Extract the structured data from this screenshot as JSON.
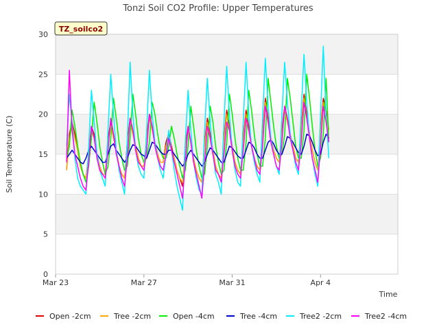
{
  "chart_data": {
    "type": "line",
    "title": "Tonzi Soil CO2 Profile: Upper Temperatures",
    "xlabel": "Time",
    "ylabel": "Soil Temperature (C)",
    "badge": "TZ_soilco2",
    "ylim": [
      0,
      30
    ],
    "yticks": [
      0,
      5,
      10,
      15,
      20,
      25,
      30
    ],
    "xlim": [
      "2000-03-23",
      "2000-04-07T12:00"
    ],
    "xticks": [
      {
        "date": "2000-03-23",
        "label": "Mar 23"
      },
      {
        "date": "2000-03-27",
        "label": "Mar 27"
      },
      {
        "date": "2000-03-31",
        "label": "Mar 31"
      },
      {
        "date": "2000-04-04",
        "label": "Apr 4"
      }
    ],
    "grid": true,
    "legend_position": "bottom",
    "series": [
      {
        "name": "Open -2cm",
        "color": "#dd0000",
        "start": "2000-03-23T12:00",
        "step_hours": 3,
        "values": [
          13.0,
          17.5,
          19.0,
          17.5,
          15.5,
          13.5,
          12.5,
          12.0,
          15.0,
          18.5,
          17.5,
          15.0,
          13.5,
          12.5,
          12.5,
          17.0,
          19.0,
          17.5,
          15.5,
          13.5,
          12.5,
          12.0,
          16.5,
          19.5,
          18.0,
          16.0,
          14.5,
          13.5,
          13.5,
          17.0,
          20.0,
          18.5,
          16.5,
          15.0,
          14.0,
          14.0,
          16.5,
          17.5,
          16.0,
          14.5,
          13.0,
          12.0,
          11.0,
          16.0,
          18.5,
          16.5,
          14.5,
          13.0,
          12.0,
          11.5,
          16.5,
          19.5,
          17.5,
          15.5,
          13.5,
          12.5,
          12.0,
          17.0,
          20.5,
          18.5,
          16.0,
          14.0,
          13.0,
          12.5,
          17.0,
          20.5,
          18.5,
          16.0,
          14.5,
          13.5,
          13.0,
          17.5,
          22.0,
          19.5,
          17.0,
          15.5,
          14.5,
          14.0,
          18.0,
          21.0,
          19.5,
          17.5,
          16.0,
          14.5,
          14.0,
          18.5,
          22.5,
          20.0,
          17.5,
          15.5,
          14.0,
          13.0,
          18.0,
          22.0,
          20.5,
          18.0
        ]
      },
      {
        "name": "Tree -2cm",
        "color": "#ffaa00",
        "start": "2000-03-23T12:00",
        "step_hours": 3,
        "values": [
          13.0,
          17.0,
          18.5,
          17.0,
          15.5,
          13.5,
          12.5,
          12.0,
          15.0,
          18.0,
          17.0,
          15.0,
          13.5,
          12.5,
          12.5,
          16.5,
          18.5,
          17.0,
          15.5,
          13.5,
          12.5,
          12.0,
          16.0,
          19.0,
          17.5,
          16.0,
          14.5,
          13.5,
          13.5,
          16.5,
          19.5,
          18.0,
          16.5,
          15.0,
          14.0,
          14.0,
          16.0,
          17.0,
          15.5,
          14.5,
          13.0,
          12.0,
          11.5,
          15.5,
          18.0,
          16.5,
          14.5,
          13.0,
          12.0,
          11.5,
          16.0,
          19.0,
          17.0,
          15.5,
          13.5,
          12.5,
          12.0,
          16.5,
          20.0,
          18.0,
          16.0,
          14.0,
          13.0,
          12.5,
          16.5,
          20.0,
          18.0,
          16.0,
          14.5,
          13.5,
          13.0,
          17.0,
          21.5,
          19.0,
          17.0,
          15.5,
          14.5,
          14.0,
          17.5,
          20.5,
          19.0,
          17.5,
          16.0,
          14.5,
          14.0,
          18.0,
          22.0,
          19.5,
          17.5,
          15.5,
          14.0,
          13.0,
          17.5,
          21.5,
          20.0,
          18.0
        ]
      },
      {
        "name": "Open -4cm",
        "color": "#00ee00",
        "start": "2000-03-23T12:00",
        "step_hours": 3,
        "values": [
          14.5,
          16.0,
          20.5,
          18.5,
          16.0,
          14.0,
          12.5,
          11.5,
          13.5,
          17.0,
          21.5,
          19.0,
          16.0,
          14.0,
          12.5,
          13.5,
          17.0,
          22.0,
          19.5,
          16.5,
          14.5,
          13.0,
          13.5,
          17.0,
          22.5,
          20.0,
          17.0,
          15.0,
          14.0,
          14.5,
          16.5,
          21.5,
          20.0,
          17.5,
          15.5,
          14.5,
          14.5,
          16.0,
          18.5,
          17.0,
          15.0,
          13.5,
          12.0,
          13.0,
          16.0,
          21.0,
          18.5,
          15.5,
          13.5,
          12.0,
          12.5,
          16.0,
          21.0,
          19.0,
          16.0,
          14.0,
          12.5,
          13.0,
          16.5,
          22.5,
          20.0,
          17.0,
          14.5,
          13.0,
          13.0,
          16.5,
          23.0,
          20.5,
          17.5,
          15.0,
          13.5,
          13.5,
          17.0,
          24.5,
          21.5,
          18.5,
          16.0,
          14.5,
          15.0,
          17.5,
          24.5,
          22.0,
          19.0,
          16.0,
          14.5,
          14.5,
          18.0,
          25.0,
          22.0,
          18.5,
          15.5,
          13.5,
          14.5,
          17.5,
          24.5,
          16.5
        ]
      },
      {
        "name": "Tree -4cm",
        "color": "#0000cc",
        "start": "2000-03-23T12:00",
        "step_hours": 3,
        "values": [
          14.5,
          15.0,
          15.5,
          15.0,
          14.5,
          14.0,
          13.8,
          14.5,
          15.5,
          16.0,
          15.5,
          15.0,
          14.5,
          14.0,
          14.0,
          15.0,
          16.0,
          16.3,
          15.5,
          15.0,
          14.5,
          14.0,
          14.5,
          15.5,
          16.2,
          16.0,
          15.5,
          15.0,
          14.8,
          14.5,
          15.5,
          16.5,
          16.3,
          15.8,
          15.3,
          15.0,
          15.0,
          15.5,
          15.5,
          15.0,
          14.5,
          14.0,
          13.5,
          14.0,
          15.0,
          15.5,
          15.0,
          14.5,
          14.0,
          13.5,
          14.0,
          15.0,
          15.8,
          15.5,
          15.0,
          14.5,
          14.0,
          14.0,
          15.0,
          16.0,
          15.8,
          15.3,
          14.8,
          14.5,
          14.5,
          15.5,
          16.5,
          16.3,
          15.8,
          15.0,
          14.5,
          14.5,
          15.5,
          16.5,
          16.8,
          16.3,
          15.5,
          15.0,
          15.0,
          16.0,
          17.2,
          17.0,
          16.5,
          15.8,
          15.2,
          15.0,
          16.0,
          17.5,
          17.3,
          16.5,
          15.5,
          14.8,
          15.0,
          16.5,
          17.5,
          17.0
        ]
      },
      {
        "name": "Tree2 -2cm",
        "color": "#00eeff",
        "start": "2000-03-23T12:00",
        "step_hours": 3,
        "values": [
          16.0,
          22.5,
          19.0,
          14.5,
          12.0,
          11.0,
          10.5,
          10.0,
          16.0,
          23.0,
          19.0,
          15.0,
          13.0,
          12.0,
          11.0,
          18.0,
          25.0,
          20.0,
          15.5,
          13.0,
          11.5,
          10.0,
          17.0,
          26.5,
          20.0,
          15.5,
          13.5,
          12.5,
          12.0,
          18.0,
          25.5,
          20.0,
          16.5,
          14.5,
          13.0,
          12.0,
          15.0,
          18.0,
          15.5,
          13.0,
          11.0,
          9.5,
          8.0,
          16.5,
          23.0,
          18.0,
          14.0,
          12.0,
          10.5,
          10.0,
          18.0,
          24.5,
          19.0,
          15.0,
          12.5,
          11.5,
          10.0,
          19.0,
          26.0,
          20.0,
          15.5,
          13.0,
          11.5,
          11.0,
          19.0,
          26.5,
          20.0,
          16.0,
          14.0,
          12.5,
          11.5,
          19.5,
          27.0,
          21.0,
          17.0,
          15.0,
          13.5,
          12.5,
          20.0,
          26.5,
          21.5,
          17.5,
          15.5,
          13.5,
          12.5,
          20.5,
          27.5,
          21.5,
          17.0,
          14.5,
          12.5,
          11.0,
          20.0,
          28.5,
          20.0,
          14.5
        ]
      },
      {
        "name": "Tree2 -4cm",
        "color": "#ff00ff",
        "start": "2000-03-23T12:00",
        "step_hours": 3,
        "values": [
          14.0,
          25.5,
          18.0,
          15.0,
          13.5,
          12.0,
          11.0,
          10.5,
          14.0,
          18.5,
          17.0,
          14.5,
          13.0,
          12.5,
          12.0,
          15.5,
          19.5,
          17.5,
          15.0,
          13.5,
          12.0,
          11.0,
          14.5,
          19.5,
          18.0,
          15.5,
          14.0,
          13.5,
          13.0,
          15.5,
          20.0,
          18.5,
          16.0,
          14.5,
          13.5,
          13.0,
          15.0,
          17.0,
          15.5,
          14.0,
          12.5,
          11.0,
          9.5,
          14.0,
          18.5,
          16.5,
          14.0,
          12.5,
          11.0,
          9.5,
          14.0,
          18.5,
          17.0,
          15.0,
          13.0,
          12.5,
          11.5,
          15.0,
          19.0,
          18.0,
          15.5,
          13.5,
          12.5,
          12.0,
          15.5,
          19.5,
          18.0,
          16.0,
          14.5,
          13.0,
          12.5,
          16.0,
          21.0,
          19.0,
          16.5,
          15.0,
          13.5,
          13.0,
          16.5,
          21.0,
          19.5,
          17.0,
          15.5,
          14.0,
          13.0,
          16.5,
          21.5,
          19.5,
          17.0,
          14.5,
          13.0,
          11.5,
          16.0,
          21.0,
          19.0,
          16.5
        ]
      }
    ]
  }
}
